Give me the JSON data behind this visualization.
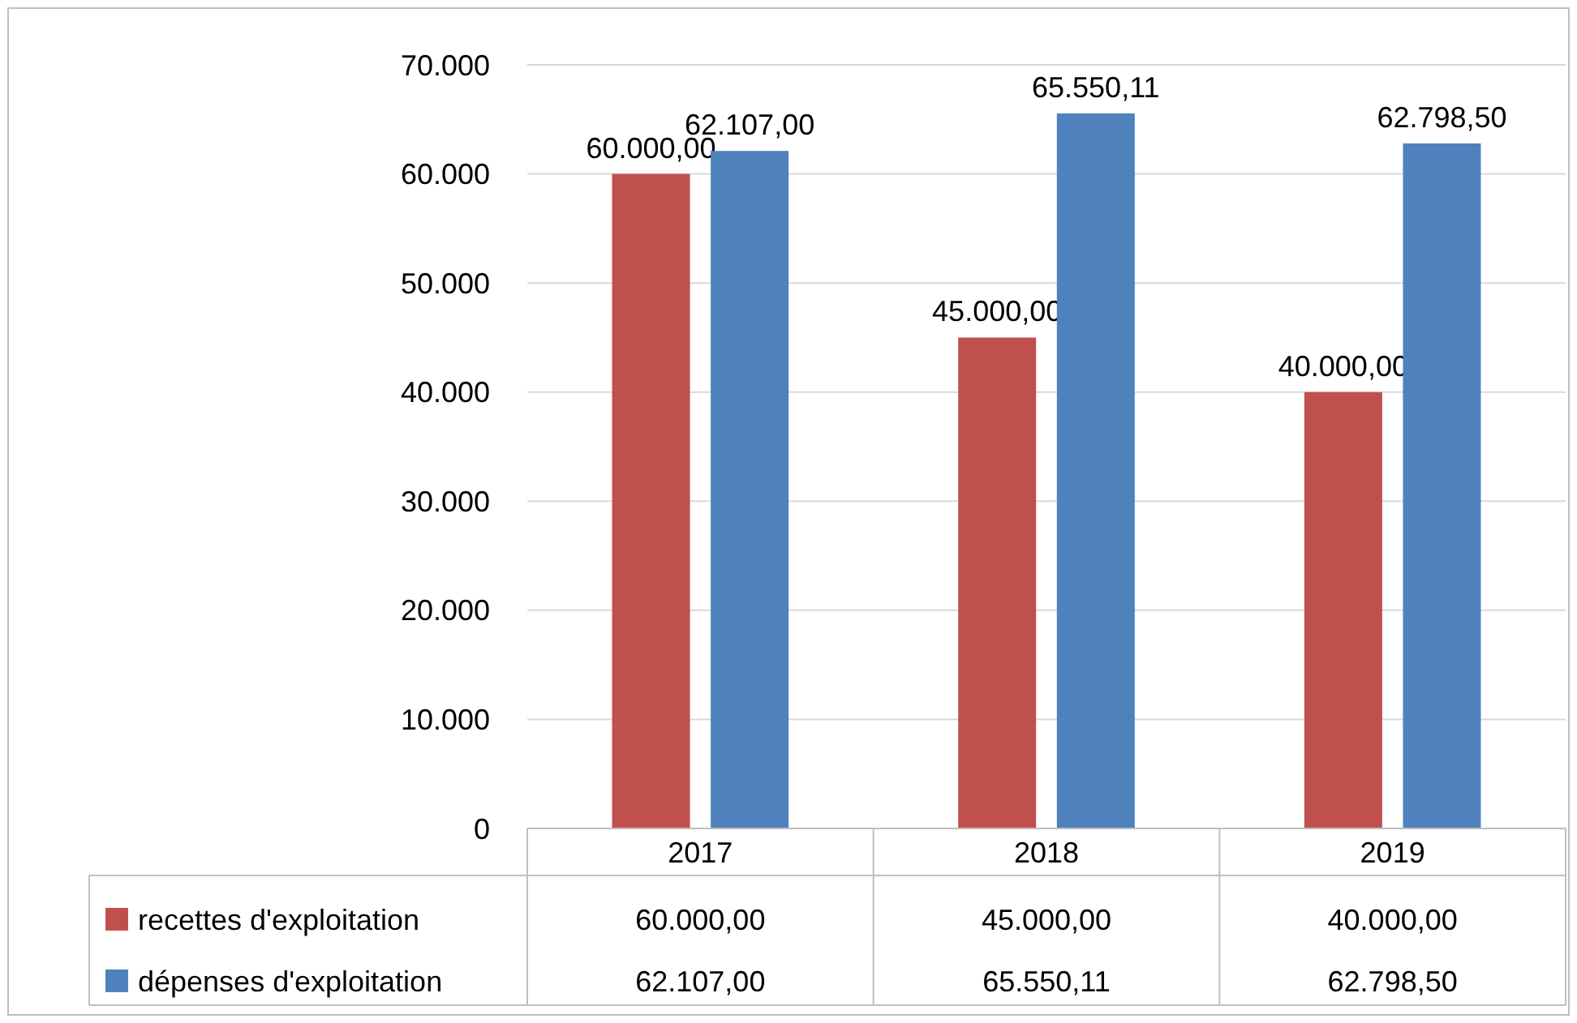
{
  "chart_data": {
    "type": "bar",
    "categories": [
      "2017",
      "2018",
      "2019"
    ],
    "series": [
      {
        "name": "recettes d'exploitation",
        "color": "#c0504d",
        "values": [
          60000,
          45000,
          40000
        ],
        "value_labels": [
          "60.000,00",
          "45.000,00",
          "40.000,00"
        ]
      },
      {
        "name": "dépenses d'exploitation",
        "color": "#4f81bd",
        "values": [
          62107,
          65550.11,
          62798.5
        ],
        "value_labels": [
          "62.107,00",
          "65.550,11",
          "62.798,50"
        ]
      }
    ],
    "ylim": [
      0,
      70000
    ],
    "yticks": [
      {
        "value": 0,
        "label": "0"
      },
      {
        "value": 10000,
        "label": "10.000"
      },
      {
        "value": 20000,
        "label": "20.000"
      },
      {
        "value": 30000,
        "label": "30.000"
      },
      {
        "value": 40000,
        "label": "40.000"
      },
      {
        "value": 50000,
        "label": "50.000"
      },
      {
        "value": 60000,
        "label": "60.000"
      },
      {
        "value": 70000,
        "label": "70.000"
      }
    ],
    "grid": "y",
    "legend": "bottom"
  }
}
